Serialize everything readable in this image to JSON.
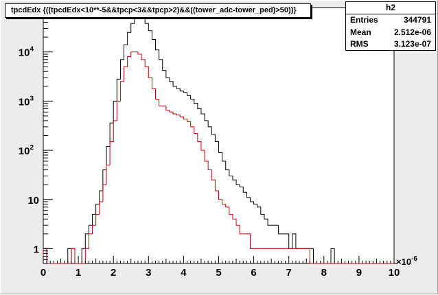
{
  "histogram_title": "tpcdEdx {((tpcdEdx<10**-5&&tpcp<3&&tpcp>2)&&((tower_adc-tower_ped)>50))}",
  "stats": {
    "title": "h2",
    "rows": [
      {
        "label": "Entries",
        "value": "344791"
      },
      {
        "label": "Mean",
        "value": "2.512e-06"
      },
      {
        "label": "RMS",
        "value": "3.123e-07"
      }
    ]
  },
  "x_multiplier": "×10",
  "x_multiplier_exp": "-6",
  "chart_data": {
    "type": "line",
    "title": "tpcdEdx {((tpcdEdx<10**-5&&tpcp<3&&tpcp>2)&&((tower_adc-tower_ped)>50))}",
    "xlabel": "",
    "ylabel": "",
    "xlim": [
      0,
      10
    ],
    "ylim": [
      0.5,
      80000
    ],
    "yscale": "log",
    "x_ticks": [
      "0",
      "1",
      "2",
      "3",
      "4",
      "5",
      "6",
      "7",
      "8",
      "9",
      "10"
    ],
    "y_ticks": [
      {
        "value": 1,
        "base": "1",
        "exp": ""
      },
      {
        "value": 10,
        "base": "10",
        "exp": ""
      },
      {
        "value": 100,
        "base": "10",
        "exp": "2"
      },
      {
        "value": 1000,
        "base": "10",
        "exp": "3"
      },
      {
        "value": 10000,
        "base": "10",
        "exp": "4"
      }
    ],
    "grid": false,
    "bin_width": 0.1,
    "x_start": 0.0,
    "series": [
      {
        "color": "#000000",
        "values": [
          1,
          0,
          0,
          0,
          0,
          0,
          0,
          1,
          0,
          0,
          0,
          1,
          2,
          3,
          5,
          8,
          15,
          40,
          120,
          360,
          1000,
          2800,
          7000,
          14000,
          25000,
          38000,
          47000,
          50000,
          47000,
          38000,
          27000,
          18000,
          11000,
          7000,
          4200,
          3000,
          2500,
          2000,
          1800,
          1600,
          1500,
          1300,
          1100,
          900,
          700,
          550,
          400,
          300,
          210,
          150,
          90,
          60,
          40,
          30,
          25,
          20,
          18,
          14,
          11,
          9,
          8,
          7,
          5,
          4,
          3,
          3,
          3,
          2,
          2,
          2,
          1,
          2,
          1,
          1,
          1,
          1,
          1,
          0,
          0,
          0,
          0,
          0,
          1,
          0,
          0,
          0,
          0,
          0,
          0,
          0,
          0,
          0,
          0,
          0,
          0,
          0,
          0,
          0,
          0,
          0,
          0
        ]
      },
      {
        "color": "#cc0000",
        "values": [
          1,
          0,
          0,
          0,
          0,
          0,
          0,
          0,
          1,
          0,
          0,
          0,
          1,
          2,
          3,
          5,
          9,
          20,
          50,
          150,
          400,
          1000,
          2500,
          5000,
          8000,
          10000,
          10000,
          9000,
          7000,
          5000,
          3000,
          1800,
          1100,
          800,
          800,
          650,
          600,
          550,
          520,
          480,
          430,
          380,
          300,
          220,
          150,
          100,
          60,
          40,
          25,
          15,
          10,
          8,
          7,
          5,
          4,
          3,
          2,
          2,
          2,
          1,
          1,
          1,
          1,
          1,
          1,
          1,
          1,
          1,
          1,
          1,
          1,
          1,
          1,
          1,
          1,
          1,
          0,
          0,
          0,
          0,
          0,
          0,
          0,
          0,
          0,
          0,
          0,
          0,
          0,
          0,
          0,
          0,
          0,
          0,
          0,
          0,
          0,
          0,
          0,
          0
        ]
      }
    ]
  }
}
